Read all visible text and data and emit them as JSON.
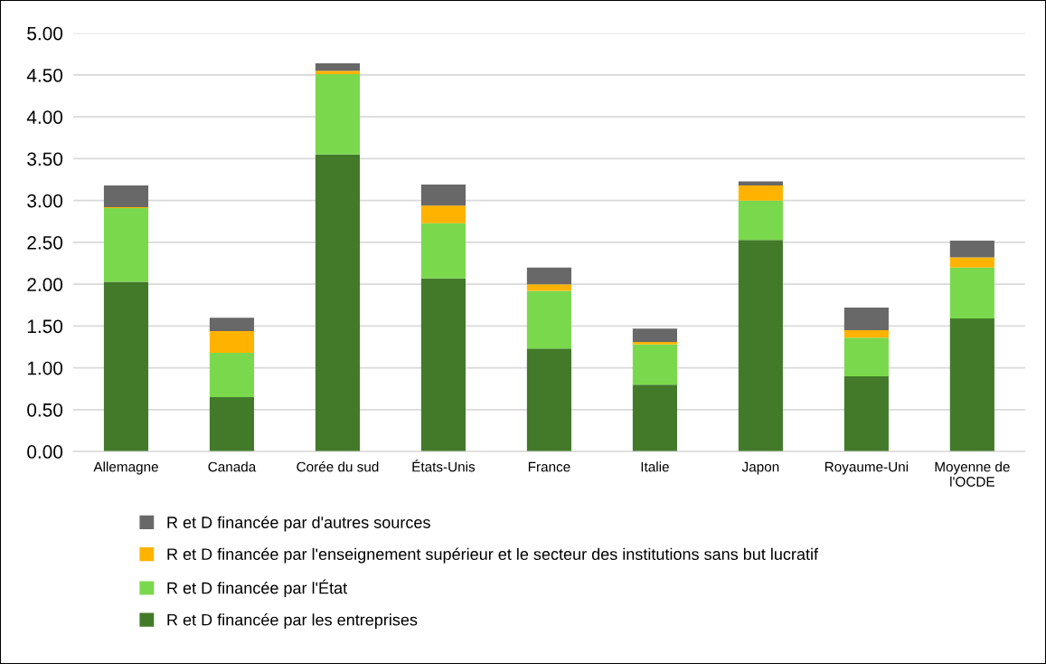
{
  "chart_data": {
    "type": "bar",
    "stacked": true,
    "categories": [
      "Allemagne",
      "Canada",
      "Corée du sud",
      "États-Unis",
      "France",
      "Italie",
      "Japon",
      "Royaume-Uni",
      "Moyenne de\nl'OCDE"
    ],
    "series": [
      {
        "name": "R et D financée par les entreprises",
        "color": "#437a2a",
        "values": [
          2.03,
          0.65,
          3.55,
          2.07,
          1.23,
          0.8,
          2.53,
          0.9,
          1.59
        ]
      },
      {
        "name": "R et D financée par l'État",
        "color": "#7ad84c",
        "values": [
          0.88,
          0.53,
          0.96,
          0.66,
          0.69,
          0.48,
          0.47,
          0.46,
          0.61
        ]
      },
      {
        "name": "R et D financée par l'enseignement supérieur et le secteur des institutions sans but lucratif",
        "color": "#ffb300",
        "values": [
          0.01,
          0.26,
          0.04,
          0.21,
          0.08,
          0.03,
          0.18,
          0.09,
          0.12
        ]
      },
      {
        "name": "R et D financée par d'autres sources",
        "color": "#686868",
        "values": [
          0.26,
          0.16,
          0.09,
          0.25,
          0.2,
          0.16,
          0.05,
          0.27,
          0.2
        ]
      }
    ],
    "ylim": [
      0,
      5
    ],
    "yticks": [
      {
        "value": 0,
        "label": "0.00"
      },
      {
        "value": 0.5,
        "label": "0.50"
      },
      {
        "value": 1,
        "label": "1.00"
      },
      {
        "value": 1.5,
        "label": "1.50"
      },
      {
        "value": 2,
        "label": "2.00"
      },
      {
        "value": 2.5,
        "label": "2.50"
      },
      {
        "value": 3,
        "label": "3.00"
      },
      {
        "value": 3.5,
        "label": "3.50"
      },
      {
        "value": 4,
        "label": "4.00"
      },
      {
        "value": 4.5,
        "label": "4.50"
      },
      {
        "value": 5,
        "label": "5.00"
      }
    ],
    "grid": "y",
    "legend": "bottom"
  }
}
